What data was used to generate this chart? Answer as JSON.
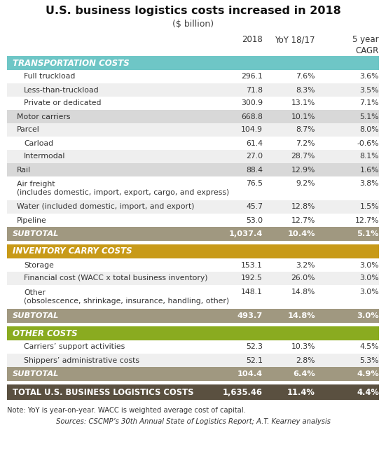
{
  "title": "U.S. business logistics costs increased in 2018",
  "subtitle": "($ billion)",
  "sections": [
    {
      "header": "TRANSPORTATION COSTS",
      "header_bg": "#6ec6c6",
      "rows": [
        {
          "label": "Full truckload",
          "indent": 2,
          "val1": "296.1",
          "val2": "7.6%",
          "val3": "3.6%",
          "bg": "#ffffff"
        },
        {
          "label": "Less-than-truckload",
          "indent": 2,
          "val1": "71.8",
          "val2": "8.3%",
          "val3": "3.5%",
          "bg": "#efefef"
        },
        {
          "label": "Private or dedicated",
          "indent": 2,
          "val1": "300.9",
          "val2": "13.1%",
          "val3": "7.1%",
          "bg": "#ffffff"
        },
        {
          "label": "Motor carriers",
          "indent": 1,
          "val1": "668.8",
          "val2": "10.1%",
          "val3": "5.1%",
          "bg": "#d8d8d8"
        },
        {
          "label": "Parcel",
          "indent": 1,
          "val1": "104.9",
          "val2": "8.7%",
          "val3": "8.0%",
          "bg": "#efefef"
        },
        {
          "label": "Carload",
          "indent": 2,
          "val1": "61.4",
          "val2": "7.2%",
          "val3": "-0.6%",
          "bg": "#ffffff"
        },
        {
          "label": "Intermodal",
          "indent": 2,
          "val1": "27.0",
          "val2": "28.7%",
          "val3": "8.1%",
          "bg": "#efefef"
        },
        {
          "label": "Rail",
          "indent": 1,
          "val1": "88.4",
          "val2": "12.9%",
          "val3": "1.6%",
          "bg": "#d8d8d8"
        },
        {
          "label": "Air freight\n(includes domestic, import, export, cargo, and express)",
          "indent": 1,
          "val1": "76.5",
          "val2": "9.2%",
          "val3": "3.8%",
          "bg": "#ffffff",
          "multiline": true
        },
        {
          "label": "Water (included domestic, import, and export)",
          "indent": 1,
          "val1": "45.7",
          "val2": "12.8%",
          "val3": "1.5%",
          "bg": "#efefef"
        },
        {
          "label": "Pipeline",
          "indent": 1,
          "val1": "53.0",
          "val2": "12.7%",
          "val3": "12.7%",
          "bg": "#ffffff"
        }
      ],
      "subtotal": {
        "label": "SUBTOTAL",
        "val1": "1,037.4",
        "val2": "10.4%",
        "val3": "5.1%"
      }
    },
    {
      "header": "INVENTORY CARRY COSTS",
      "header_bg": "#c89a18",
      "rows": [
        {
          "label": "Storage",
          "indent": 2,
          "val1": "153.1",
          "val2": "3.2%",
          "val3": "3.0%",
          "bg": "#ffffff"
        },
        {
          "label": "Financial cost (WACC x total business inventory)",
          "indent": 2,
          "val1": "192.5",
          "val2": "26.0%",
          "val3": "3.0%",
          "bg": "#efefef"
        },
        {
          "label": "Other\n(obsolescence, shrinkage, insurance, handling, other)",
          "indent": 2,
          "val1": "148.1",
          "val2": "14.8%",
          "val3": "3.0%",
          "bg": "#ffffff",
          "multiline": true
        }
      ],
      "subtotal": {
        "label": "SUBTOTAL",
        "val1": "493.7",
        "val2": "14.8%",
        "val3": "3.0%"
      }
    },
    {
      "header": "OTHER COSTS",
      "header_bg": "#8aab20",
      "rows": [
        {
          "label": "Carriers’ support activities",
          "indent": 2,
          "val1": "52.3",
          "val2": "10.3%",
          "val3": "4.5%",
          "bg": "#ffffff"
        },
        {
          "label": "Shippers’ administrative costs",
          "indent": 2,
          "val1": "52.1",
          "val2": "2.8%",
          "val3": "5.3%",
          "bg": "#efefef"
        }
      ],
      "subtotal": {
        "label": "SUBTOTAL",
        "val1": "104.4",
        "val2": "6.4%",
        "val3": "4.9%"
      }
    }
  ],
  "total_row": {
    "label": "TOTAL U.S. BUSINESS LOGISTICS COSTS",
    "val1": "1,635.46",
    "val2": "11.4%",
    "val3": "4.4%"
  },
  "note": "Note: YoY is year-on-year. WACC is weighted average cost of capital.",
  "source": "Sources: CSCMP’s 30th Annual State of Logistics Report; A.T. Kearney analysis",
  "subtotal_bg": "#a09880",
  "total_bg": "#5a5040"
}
